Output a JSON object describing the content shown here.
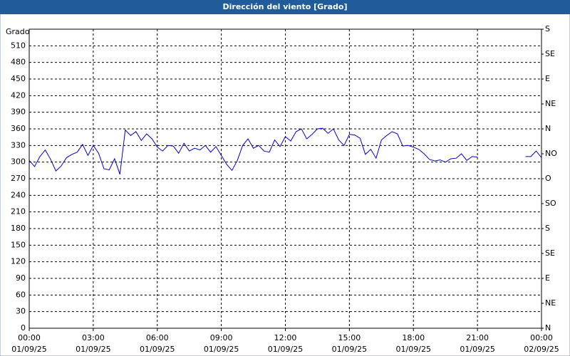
{
  "chart_data": {
    "type": "line",
    "title": "Dirección del viento [Grado]",
    "y_label": "Grado",
    "x": [
      0,
      0.25,
      0.5,
      0.75,
      1,
      1.25,
      1.5,
      1.75,
      2,
      2.25,
      2.5,
      2.75,
      3,
      3.25,
      3.5,
      3.75,
      4,
      4.25,
      4.5,
      4.75,
      5,
      5.25,
      5.5,
      5.75,
      6,
      6.25,
      6.5,
      6.75,
      7,
      7.25,
      7.5,
      7.75,
      8,
      8.25,
      8.5,
      8.75,
      9,
      9.25,
      9.5,
      9.75,
      10,
      10.25,
      10.5,
      10.75,
      11,
      11.25,
      11.5,
      11.75,
      12,
      12.25,
      12.5,
      12.75,
      13,
      13.25,
      13.5,
      13.75,
      14,
      14.25,
      14.5,
      14.75,
      15,
      15.25,
      15.5,
      15.75,
      16,
      16.25,
      16.5,
      16.75,
      17,
      17.25,
      17.5,
      17.75,
      18,
      18.25,
      18.5,
      18.75,
      19,
      19.25,
      19.5,
      19.75,
      20,
      20.25,
      20.5,
      20.75,
      21,
      22,
      23.25,
      23.5,
      23.75,
      24
    ],
    "series": [
      {
        "name": "Dirección del viento",
        "color": "#0000cc",
        "values": [
          303,
          292,
          310,
          322,
          305,
          284,
          293,
          308,
          314,
          318,
          332,
          312,
          330,
          316,
          288,
          286,
          306,
          278,
          358,
          348,
          355,
          339,
          351,
          342,
          327,
          320,
          330,
          329,
          316,
          334,
          320,
          325,
          322,
          330,
          318,
          328,
          312,
          296,
          285,
          303,
          330,
          342,
          325,
          330,
          320,
          318,
          340,
          328,
          346,
          338,
          355,
          360,
          342,
          350,
          360,
          361,
          352,
          360,
          340,
          330,
          350,
          349,
          343,
          314,
          323,
          307,
          340,
          348,
          355,
          351,
          329,
          330,
          327,
          323,
          315,
          305,
          302,
          304,
          300,
          306,
          307,
          315,
          303,
          310,
          309,
          null,
          310,
          310,
          320,
          308
        ]
      }
    ],
    "xlim": [
      0,
      24
    ],
    "xticks": [
      {
        "value": 0,
        "label": "00:00",
        "date": "01/09/25"
      },
      {
        "value": 3,
        "label": "03:00",
        "date": "01/09/25"
      },
      {
        "value": 6,
        "label": "06:00",
        "date": "01/09/25"
      },
      {
        "value": 9,
        "label": "09:00",
        "date": "01/09/25"
      },
      {
        "value": 12,
        "label": "12:00",
        "date": "01/09/25"
      },
      {
        "value": 15,
        "label": "15:00",
        "date": "01/09/25"
      },
      {
        "value": 18,
        "label": "18:00",
        "date": "01/09/25"
      },
      {
        "value": 21,
        "label": "21:00",
        "date": "01/09/25"
      },
      {
        "value": 24,
        "label": "00:00",
        "date": "02/09/25"
      }
    ],
    "ylim": [
      0,
      540
    ],
    "yticks": [
      0,
      30,
      60,
      90,
      120,
      150,
      180,
      210,
      240,
      270,
      300,
      330,
      360,
      390,
      420,
      450,
      480,
      510
    ],
    "y2lim": [
      0,
      540
    ],
    "y2ticks": [
      {
        "value": 0,
        "label": "N"
      },
      {
        "value": 45,
        "label": "NE"
      },
      {
        "value": 90,
        "label": "E"
      },
      {
        "value": 135,
        "label": "SE"
      },
      {
        "value": 180,
        "label": "S"
      },
      {
        "value": 225,
        "label": "SO"
      },
      {
        "value": 270,
        "label": "O"
      },
      {
        "value": 315,
        "label": "NO"
      },
      {
        "value": 360,
        "label": "N"
      },
      {
        "value": 405,
        "label": "NE"
      },
      {
        "value": 450,
        "label": "E"
      },
      {
        "value": 495,
        "label": "SE"
      },
      {
        "value": 540,
        "label": "S"
      }
    ],
    "grid": true
  }
}
